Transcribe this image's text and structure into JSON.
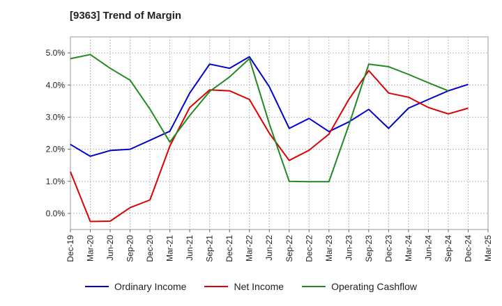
{
  "chart_data": {
    "type": "line",
    "title": "[9363]  Trend of Margin",
    "xlabel": "",
    "ylabel": "",
    "categories": [
      "Dec-19",
      "Mar-20",
      "Jun-20",
      "Sep-20",
      "Dec-20",
      "Mar-21",
      "Jun-21",
      "Sep-21",
      "Dec-21",
      "Mar-22",
      "Jun-22",
      "Sep-22",
      "Dec-22",
      "Mar-23",
      "Jun-23",
      "Sep-23",
      "Dec-23",
      "Mar-24",
      "Jun-24",
      "Sep-24",
      "Dec-24",
      "Mar-25"
    ],
    "y_ticks": [
      "0.0%",
      "1.0%",
      "2.0%",
      "3.0%",
      "4.0%",
      "5.0%"
    ],
    "ylim": [
      -0.5,
      5.5
    ],
    "grid": true,
    "legend_position": "bottom",
    "series": [
      {
        "name": "Ordinary Income",
        "color": "#0000cc",
        "values": [
          2.15,
          1.78,
          1.96,
          2.0,
          2.28,
          2.56,
          3.75,
          4.65,
          4.52,
          4.88,
          3.95,
          2.65,
          2.96,
          2.55,
          2.85,
          3.24,
          2.65,
          3.28,
          3.55,
          3.82,
          4.02,
          null
        ]
      },
      {
        "name": "Net Income",
        "color": "#dd0000",
        "values": [
          1.3,
          -0.25,
          -0.24,
          0.18,
          0.42,
          2.1,
          3.3,
          3.85,
          3.82,
          3.55,
          2.5,
          1.65,
          1.97,
          2.47,
          3.55,
          4.45,
          3.75,
          3.62,
          3.3,
          3.1,
          3.28,
          null
        ]
      },
      {
        "name": "Operating Cashflow",
        "color": "#228822",
        "values": [
          4.82,
          4.95,
          4.52,
          4.15,
          3.25,
          2.22,
          3.05,
          3.8,
          4.25,
          4.82,
          2.8,
          1.0,
          0.99,
          0.99,
          2.75,
          4.65,
          4.57,
          4.33,
          4.07,
          3.82,
          null,
          null
        ]
      }
    ]
  }
}
